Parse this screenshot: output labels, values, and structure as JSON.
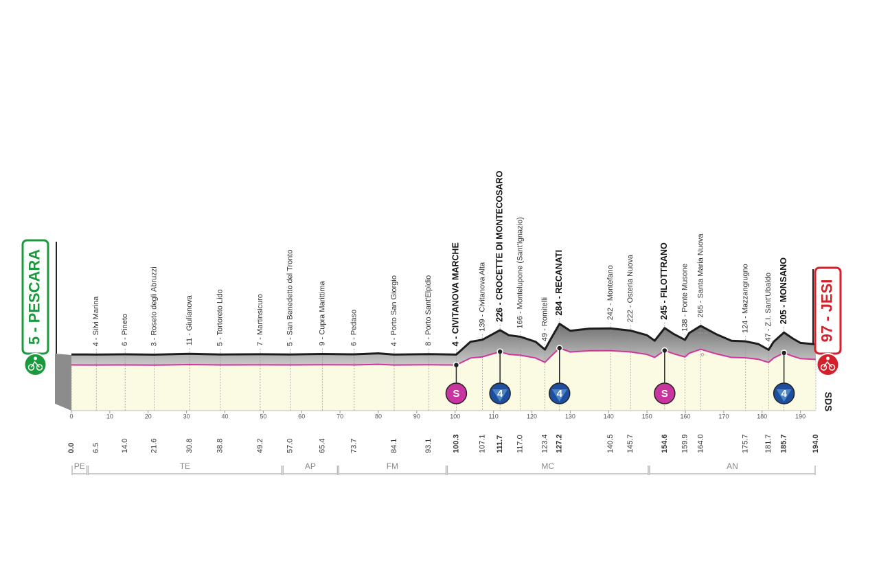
{
  "chart_data": {
    "type": "elevation-profile",
    "xlim": [
      0,
      194
    ],
    "xticks": [
      0,
      10,
      20,
      30,
      40,
      50,
      60,
      70,
      80,
      90,
      100,
      110,
      120,
      130,
      140,
      150,
      160,
      170,
      180,
      190
    ],
    "ylim": [
      0,
      300
    ],
    "yticks": [
      0,
      200
    ],
    "profile": {
      "x": [
        0,
        6.5,
        14,
        21.6,
        30.8,
        38.8,
        49.2,
        57,
        65.4,
        73.7,
        80,
        84.1,
        93.1,
        100.3,
        104,
        107.1,
        111.7,
        114,
        117,
        121,
        123.4,
        125,
        127.2,
        130,
        135,
        140.5,
        145.7,
        150,
        152,
        154.6,
        157,
        159.9,
        161,
        164,
        168,
        172,
        175.7,
        179,
        181.7,
        183,
        185.7,
        188,
        190,
        194
      ],
      "values": [
        5,
        4,
        6,
        3,
        11,
        5,
        7,
        5,
        9,
        6,
        15,
        4,
        8,
        4,
        120,
        139,
        226,
        180,
        166,
        120,
        49,
        150,
        284,
        220,
        240,
        242,
        222,
        180,
        130,
        245,
        190,
        138,
        200,
        265,
        190,
        130,
        124,
        100,
        47,
        120,
        205,
        150,
        110,
        97
      ]
    },
    "waypoints": [
      {
        "label": "5 - PESCARA",
        "km": {
          "value": 0,
          "label": "0.0"
        },
        "bold": true,
        "sign": "start"
      },
      {
        "label": "4 - Silvi Marina",
        "km": 6.5
      },
      {
        "label": "6 - Pineto",
        "km": {
          "value": 14,
          "label": "14.0"
        }
      },
      {
        "label": "3 - Roseto degli Abruzzi",
        "km": 21.6
      },
      {
        "label": "11 - Giulianova",
        "km": 30.8
      },
      {
        "label": "5 - Tortoreto Lido",
        "km": 38.8
      },
      {
        "label": "7 - Martinsicuro",
        "km": 49.2
      },
      {
        "label": "5 - San Benedetto del Tronto",
        "km": {
          "value": 57,
          "label": "57.0"
        }
      },
      {
        "label": "9 - Cupra Marittima",
        "km": 65.4
      },
      {
        "label": "6 - Pedaso",
        "km": 73.7
      },
      {
        "label": "4 - Porto San Giorgio",
        "km": 84.1
      },
      {
        "label": "8 - Porto Sant'Elpidio",
        "km": 93.1
      },
      {
        "label": "4 - CIVITANOVA MARCHE",
        "km": 100.3,
        "bold": true,
        "marker": "S"
      },
      {
        "label": "139 - Civitanova Alta",
        "km": 107.1
      },
      {
        "label": "226 - CROCETTE DI MONTECOSARO",
        "km": 111.7,
        "bold": true,
        "marker": "4"
      },
      {
        "label": "166 - Montelupone (Sant'Ignazio)",
        "km": {
          "value": 117,
          "label": "117.0"
        }
      },
      {
        "label": "49 - Romitelli",
        "km": 123.4
      },
      {
        "label": "284 - RECANATI",
        "km": 127.2,
        "bold": true,
        "marker": "4"
      },
      {
        "label": "242 - Montefano",
        "km": 140.5
      },
      {
        "label": "222 - Osteria Nuova",
        "km": 145.7
      },
      {
        "label": "245 - FILOTTRANO",
        "km": 154.6,
        "bold": true,
        "marker": "S"
      },
      {
        "label": "138 - Ponte Musone",
        "km": 159.9
      },
      {
        "label": "265 - Santa Maria Nuova",
        "km": {
          "value": 164,
          "label": "164.0"
        }
      },
      {
        "label": "124 - Mazzangrugno",
        "km": 175.7
      },
      {
        "label": "47 - Z.I. Sant'Ubaldo",
        "km": 181.7
      },
      {
        "label": "205 - MONSANO",
        "km": 185.7,
        "bold": true,
        "marker": "4"
      },
      {
        "label": "97 - JESI",
        "km": {
          "value": 194,
          "label": "194.0"
        },
        "bold": true,
        "sign": "finish"
      }
    ],
    "provinces": [
      {
        "name": "PE",
        "from": 0,
        "to": 4.2
      },
      {
        "name": "TE",
        "from": 4.2,
        "to": 55
      },
      {
        "name": "AP",
        "from": 55,
        "to": 69.5
      },
      {
        "name": "FM",
        "from": 69.5,
        "to": 97.8
      },
      {
        "name": "MC",
        "from": 97.8,
        "to": 150.5
      },
      {
        "name": "AN",
        "from": 150.5,
        "to": 194
      }
    ],
    "logo": "SDS"
  }
}
